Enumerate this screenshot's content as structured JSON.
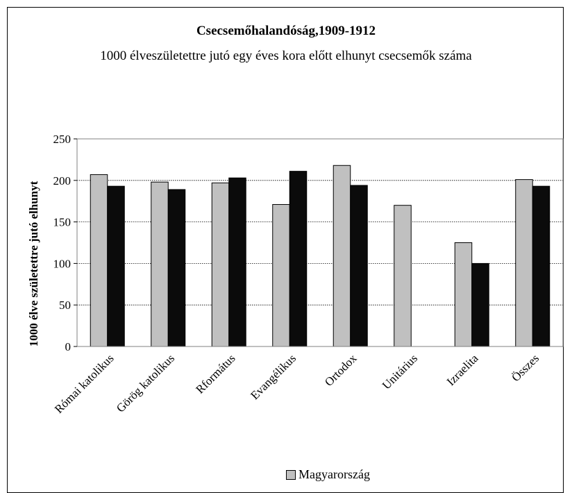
{
  "chart_data": {
    "type": "bar",
    "title": "Csecsemőhalandóság,1909-1912",
    "subtitle": "1000 élveszületettre jutó egy éves kora előtt elhunyt csecsemők száma",
    "xlabel": "",
    "ylabel": "1000 élve születettre jutó elhunyt",
    "ylim": [
      0,
      250
    ],
    "yticks": [
      "0",
      "50",
      "100",
      "150",
      "200",
      "250"
    ],
    "grid": true,
    "legend_position": "bottom",
    "categories": [
      "Római katolikus",
      "Görög katolikus",
      "Rformátus",
      "Evangélikus",
      "Ortodox",
      "Unitárius",
      "Izraelita",
      "Összes"
    ],
    "series": [
      {
        "name": "Magyarország",
        "color": "#c0c0c0",
        "values": [
          207,
          198,
          197,
          171,
          218,
          170,
          125,
          201
        ]
      },
      {
        "color": "#0b0b0b",
        "values": [
          193,
          189,
          203,
          211,
          194,
          null,
          100,
          193
        ]
      }
    ]
  }
}
